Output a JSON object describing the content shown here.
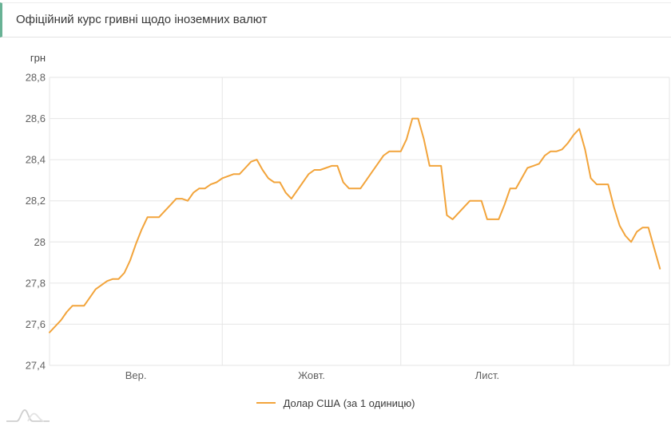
{
  "header": {
    "title": "Офіційний курс гривні щодо іноземних валют"
  },
  "colors": {
    "accent_green": "#68b295",
    "series_orange": "#f2a43b",
    "gridline": "#e6e6e6",
    "tick_text": "#616161",
    "title_text": "#383838"
  },
  "chart_data": {
    "type": "line",
    "title": "Офіційний курс гривні щодо іноземних валют",
    "xlabel": "",
    "ylabel": "грн",
    "unit_label": "грн",
    "ylim": [
      27.4,
      28.8
    ],
    "grid": true,
    "legend_position": "bottom",
    "y_ticks": [
      "28,8",
      "28,6",
      "28,4",
      "28,2",
      "28",
      "27,8",
      "27,6",
      "27,4"
    ],
    "y_tick_values": [
      28.8,
      28.6,
      28.4,
      28.2,
      28.0,
      27.8,
      27.6,
      27.4
    ],
    "x_tick_labels": [
      "Вер.",
      "Жовт.",
      "Лист."
    ],
    "month_boundary_indices": [
      0,
      30,
      61,
      91
    ],
    "series": [
      {
        "name": "Долар США (за 1 одиницю)",
        "color": "#f2a43b",
        "values": [
          27.56,
          27.59,
          27.62,
          27.66,
          27.69,
          27.69,
          27.69,
          27.73,
          27.77,
          27.79,
          27.81,
          27.82,
          27.82,
          27.85,
          27.91,
          27.99,
          28.06,
          28.12,
          28.12,
          28.12,
          28.15,
          28.18,
          28.21,
          28.21,
          28.2,
          28.24,
          28.26,
          28.26,
          28.28,
          28.29,
          28.31,
          28.32,
          28.33,
          28.33,
          28.36,
          28.39,
          28.4,
          28.35,
          28.31,
          28.29,
          28.29,
          28.24,
          28.21,
          28.25,
          28.29,
          28.33,
          28.35,
          28.35,
          28.36,
          28.37,
          28.37,
          28.29,
          28.26,
          28.26,
          28.26,
          28.3,
          28.34,
          28.38,
          28.42,
          28.44,
          28.44,
          28.44,
          28.5,
          28.6,
          28.6,
          28.5,
          28.37,
          28.37,
          28.37,
          28.13,
          28.11,
          28.14,
          28.17,
          28.2,
          28.2,
          28.2,
          28.11,
          28.11,
          28.11,
          28.18,
          28.26,
          28.26,
          28.31,
          28.36,
          28.37,
          28.38,
          28.42,
          28.44,
          28.44,
          28.45,
          28.48,
          28.52,
          28.55,
          28.45,
          28.31,
          28.28,
          28.28,
          28.28,
          28.17,
          28.08,
          28.03,
          28.0,
          28.05,
          28.07,
          28.07,
          27.97,
          27.87
        ]
      }
    ],
    "legend": {
      "label": "Долар США (за 1 одиницю)"
    }
  }
}
